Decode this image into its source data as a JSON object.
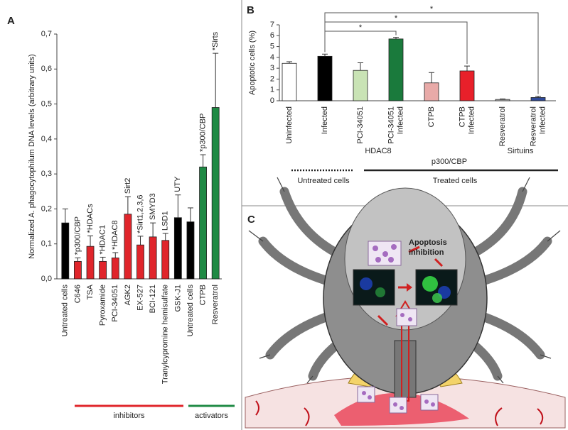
{
  "chart_data": [
    {
      "type": "bar",
      "panel": "A",
      "y_label": "Normalized A. phagocytophilum DNA levels (arbitrary units)",
      "categories": [
        "Untreated cells",
        "C646",
        "TSA",
        "Pyroxamide",
        "PCI-34051",
        "AGK2",
        "EX-527",
        "BCI-121",
        "Tranylcypromine hemisulfate",
        "GSK-J1",
        "Untreated cells",
        "CTPB",
        "Resveratrol"
      ],
      "values": [
        0.16,
        0.05,
        0.093,
        0.05,
        0.06,
        0.185,
        0.097,
        0.12,
        0.11,
        0.175,
        0.163,
        0.32,
        0.49
      ],
      "errors": [
        0.04,
        0.01,
        0.03,
        0.012,
        0.015,
        0.05,
        0.025,
        0.04,
        0.02,
        0.065,
        0.04,
        0.035,
        0.155
      ],
      "colors": [
        "#000000",
        "#e0252b",
        "#e0252b",
        "#e0252b",
        "#e0252b",
        "#e0252b",
        "#e0252b",
        "#e0252b",
        "#e0252b",
        "#000000",
        "#000000",
        "#1f8a44",
        "#1f8a44"
      ],
      "annotations": [
        null,
        "*p300/CBP",
        "*HDACs",
        "*HDAC1",
        "*HDAC8",
        "Sirt2",
        "*Sirt1,2,3,6",
        "SMYD3",
        "LSD1",
        "UTY",
        null,
        "*p300/CBP",
        "*Sirts"
      ],
      "groups": [
        {
          "label": "inhibitors",
          "color": "#e0252b"
        },
        {
          "label": "activators",
          "color": "#1f8a44"
        }
      ],
      "ylim": [
        0,
        0.7
      ],
      "yticks": [
        {
          "value": 0,
          "label": "0,0"
        },
        {
          "value": 0.1,
          "label": "0,1"
        },
        {
          "value": 0.2,
          "label": "0,2"
        },
        {
          "value": 0.3,
          "label": "0,3"
        },
        {
          "value": 0.4,
          "label": "0,4"
        },
        {
          "value": 0.5,
          "label": "0,5"
        },
        {
          "value": 0.6,
          "label": "0,6"
        },
        {
          "value": 0.7,
          "label": "0,7"
        }
      ]
    },
    {
      "type": "bar",
      "panel": "B",
      "y_label": "Apoptotic cells (%)",
      "categories": [
        [
          "Uninfected"
        ],
        [
          "Infected"
        ],
        [
          "PCI-34051"
        ],
        [
          "PCI-34051",
          "Infected"
        ],
        [
          "CTPB"
        ],
        [
          "CTPB",
          "Infected"
        ],
        [
          "Resveratrol"
        ],
        [
          "Resveratrol",
          "Infected"
        ]
      ],
      "values": [
        3.45,
        4.1,
        2.8,
        5.7,
        1.65,
        2.75,
        0.12,
        0.3
      ],
      "errors": [
        0.15,
        0.2,
        0.7,
        0.15,
        0.95,
        0.45,
        0.05,
        0.12
      ],
      "colors": [
        "#ffffff",
        "#000000",
        "#c9e3b5",
        "#1a7a3c",
        "#e8aaa8",
        "#e8202a",
        "#c4c4c4",
        "#2f4a9a"
      ],
      "treatment_groups": [
        "HDAC8",
        "p300/CBP",
        "Sirtuins"
      ],
      "condition_groups": [
        "Untreated cells",
        "Treated cells"
      ],
      "significance_labels": [
        "*",
        "*",
        "*"
      ],
      "ylim": [
        0,
        7
      ],
      "yticks": [
        0,
        1,
        2,
        3,
        4,
        5,
        6,
        7
      ]
    }
  ],
  "panel_c": {
    "panel": "C",
    "label": [
      "Apoptosis",
      "inhibition"
    ]
  }
}
